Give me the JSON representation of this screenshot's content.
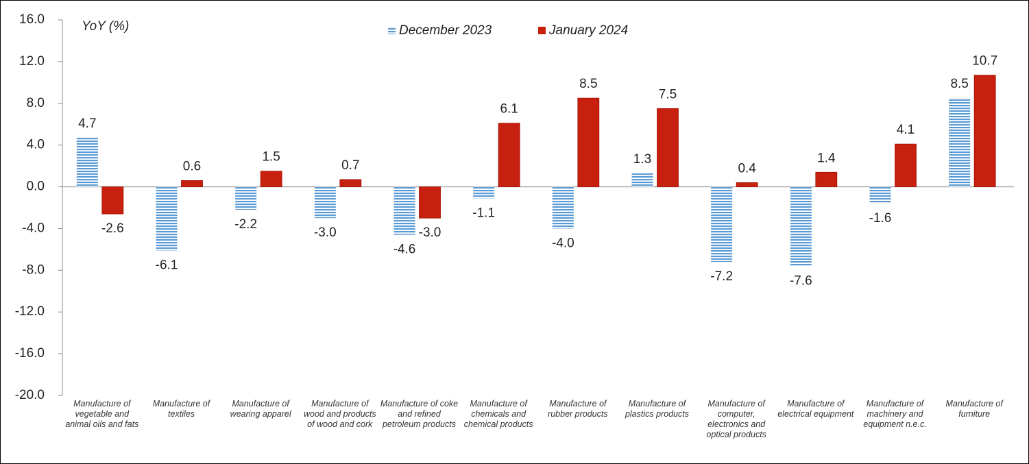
{
  "chart_data": {
    "type": "bar",
    "title": "YoY (%)",
    "categories": [
      "Manufacture of vegetable and animal oils and fats",
      "Manufacture of textiles",
      "Manufacture of wearing apparel",
      "Manufacture of wood and products of wood and cork",
      "Manufacture of coke and refined petroleum products",
      "Manufacture of chemicals and chemical products",
      "Manufacture of rubber products",
      "Manufacture of plastics products",
      "Manufacture of computer, electronics and optical products",
      "Manufacture of electrical equipment",
      "Manufacture of machinery and equipment n.e.c.",
      "Manufacture of furniture"
    ],
    "series": [
      {
        "name": "December 2023",
        "color": "#5b9bd5",
        "values": [
          4.7,
          -6.1,
          -2.2,
          -3.0,
          -4.6,
          -1.1,
          -4.0,
          1.3,
          -7.2,
          -7.6,
          -1.6,
          8.5
        ],
        "value_labels": [
          "4.7",
          "-6.1",
          "-2.2",
          "-3.0",
          "-4.6",
          "-1.1",
          "-4.0",
          "1.3",
          "-7.2",
          "-7.6",
          "-1.6",
          "8.5"
        ]
      },
      {
        "name": "January 2024",
        "color": "#c8200e",
        "values": [
          -2.6,
          0.6,
          1.5,
          0.7,
          -3.0,
          6.1,
          8.5,
          7.5,
          0.4,
          1.4,
          4.1,
          10.7
        ],
        "value_labels": [
          "-2.6",
          "0.6",
          "1.5",
          "0.7",
          "-3.0",
          "6.1",
          "8.5",
          "7.5",
          "0.4",
          "1.4",
          "4.1",
          "10.7"
        ]
      }
    ],
    "ylim": [
      -20,
      16
    ],
    "yticks": [
      {
        "value": -20,
        "label": "-20.0"
      },
      {
        "value": -16,
        "label": "-16.0"
      },
      {
        "value": -12,
        "label": "-12.0"
      },
      {
        "value": -8,
        "label": "-8.0"
      },
      {
        "value": -4,
        "label": "-4.0"
      },
      {
        "value": 0,
        "label": "0.0"
      },
      {
        "value": 4,
        "label": "4.0"
      },
      {
        "value": 8,
        "label": "8.0"
      },
      {
        "value": 12,
        "label": "12.0"
      },
      {
        "value": 16,
        "label": "16.0"
      }
    ],
    "legend": "top"
  }
}
